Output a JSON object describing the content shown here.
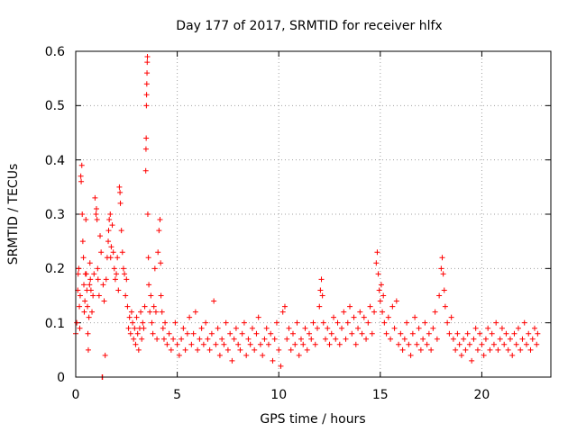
{
  "chart_data": {
    "type": "scatter",
    "title": "Day 177 of 2017, SRMTID for receiver hlfx",
    "xlabel": "GPS time / hours",
    "ylabel": "SRMTID / TECUs",
    "xlim": [
      0,
      23.4
    ],
    "ylim": [
      0,
      0.6
    ],
    "grid": true,
    "marker": "plus",
    "color": "#ff0000",
    "x_ticks": [
      0,
      5,
      10,
      15,
      20
    ],
    "x_tick_labels": [
      "0",
      "5",
      "10",
      "15",
      "20"
    ],
    "y_ticks": [
      0,
      0.1,
      0.2,
      0.3,
      0.4,
      0.5,
      0.6
    ],
    "y_tick_labels": [
      "0",
      "0.1",
      "0.2",
      "0.3",
      "0.4",
      "0.5",
      "0.6"
    ],
    "series": [
      {
        "name": "SRMTID",
        "points": [
          [
            0.0,
            0.08
          ],
          [
            0.05,
            0.1
          ],
          [
            0.1,
            0.16
          ],
          [
            0.12,
            0.19
          ],
          [
            0.15,
            0.2
          ],
          [
            0.18,
            0.13
          ],
          [
            0.2,
            0.09
          ],
          [
            0.22,
            0.15
          ],
          [
            0.25,
            0.37
          ],
          [
            0.27,
            0.36
          ],
          [
            0.3,
            0.39
          ],
          [
            0.32,
            0.3
          ],
          [
            0.35,
            0.25
          ],
          [
            0.38,
            0.22
          ],
          [
            0.4,
            0.17
          ],
          [
            0.42,
            0.12
          ],
          [
            0.45,
            0.14
          ],
          [
            0.48,
            0.19
          ],
          [
            0.5,
            0.29
          ],
          [
            0.52,
            0.19
          ],
          [
            0.55,
            0.16
          ],
          [
            0.58,
            0.13
          ],
          [
            0.6,
            0.08
          ],
          [
            0.62,
            0.05
          ],
          [
            0.65,
            0.11
          ],
          [
            0.68,
            0.17
          ],
          [
            0.7,
            0.21
          ],
          [
            0.72,
            0.18
          ],
          [
            0.75,
            0.16
          ],
          [
            0.8,
            0.12
          ],
          [
            0.85,
            0.15
          ],
          [
            0.9,
            0.19
          ],
          [
            0.95,
            0.33
          ],
          [
            1.0,
            0.3
          ],
          [
            1.02,
            0.31
          ],
          [
            1.05,
            0.29
          ],
          [
            1.08,
            0.2
          ],
          [
            1.1,
            0.18
          ],
          [
            1.15,
            0.15
          ],
          [
            1.2,
            0.26
          ],
          [
            1.25,
            0.23
          ],
          [
            1.3,
            0.0
          ],
          [
            1.32,
            0.0
          ],
          [
            1.35,
            0.17
          ],
          [
            1.4,
            0.14
          ],
          [
            1.45,
            0.04
          ],
          [
            1.5,
            0.18
          ],
          [
            1.55,
            0.22
          ],
          [
            1.6,
            0.25
          ],
          [
            1.62,
            0.27
          ],
          [
            1.65,
            0.29
          ],
          [
            1.7,
            0.3
          ],
          [
            1.72,
            0.22
          ],
          [
            1.75,
            0.24
          ],
          [
            1.8,
            0.28
          ],
          [
            1.85,
            0.23
          ],
          [
            1.9,
            0.2
          ],
          [
            1.95,
            0.18
          ],
          [
            2.0,
            0.19
          ],
          [
            2.05,
            0.22
          ],
          [
            2.1,
            0.16
          ],
          [
            2.15,
            0.35
          ],
          [
            2.18,
            0.34
          ],
          [
            2.2,
            0.32
          ],
          [
            2.25,
            0.27
          ],
          [
            2.3,
            0.23
          ],
          [
            2.35,
            0.2
          ],
          [
            2.4,
            0.19
          ],
          [
            2.45,
            0.15
          ],
          [
            2.5,
            0.18
          ],
          [
            2.55,
            0.13
          ],
          [
            2.6,
            0.09
          ],
          [
            2.65,
            0.11
          ],
          [
            2.7,
            0.08
          ],
          [
            2.75,
            0.12
          ],
          [
            2.8,
            0.1
          ],
          [
            2.85,
            0.07
          ],
          [
            2.9,
            0.09
          ],
          [
            2.95,
            0.06
          ],
          [
            3.0,
            0.11
          ],
          [
            3.05,
            0.08
          ],
          [
            3.1,
            0.05
          ],
          [
            3.15,
            0.09
          ],
          [
            3.2,
            0.12
          ],
          [
            3.25,
            0.07
          ],
          [
            3.3,
            0.1
          ],
          [
            3.35,
            0.09
          ],
          [
            3.4,
            0.13
          ],
          [
            3.45,
            0.38
          ],
          [
            3.46,
            0.42
          ],
          [
            3.47,
            0.44
          ],
          [
            3.48,
            0.5
          ],
          [
            3.49,
            0.52
          ],
          [
            3.5,
            0.54
          ],
          [
            3.51,
            0.56
          ],
          [
            3.52,
            0.58
          ],
          [
            3.53,
            0.59
          ],
          [
            3.55,
            0.3
          ],
          [
            3.58,
            0.22
          ],
          [
            3.6,
            0.17
          ],
          [
            3.65,
            0.12
          ],
          [
            3.7,
            0.15
          ],
          [
            3.75,
            0.1
          ],
          [
            3.8,
            0.08
          ],
          [
            3.85,
            0.13
          ],
          [
            3.9,
            0.2
          ],
          [
            3.95,
            0.12
          ],
          [
            4.0,
            0.07
          ],
          [
            4.05,
            0.23
          ],
          [
            4.1,
            0.27
          ],
          [
            4.15,
            0.29
          ],
          [
            4.18,
            0.21
          ],
          [
            4.2,
            0.15
          ],
          [
            4.25,
            0.12
          ],
          [
            4.3,
            0.09
          ],
          [
            4.35,
            0.07
          ],
          [
            4.4,
            0.1
          ],
          [
            4.5,
            0.06
          ],
          [
            4.6,
            0.08
          ],
          [
            4.7,
            0.05
          ],
          [
            4.8,
            0.07
          ],
          [
            4.9,
            0.1
          ],
          [
            5.0,
            0.06
          ],
          [
            5.1,
            0.04
          ],
          [
            5.2,
            0.07
          ],
          [
            5.3,
            0.09
          ],
          [
            5.4,
            0.05
          ],
          [
            5.5,
            0.08
          ],
          [
            5.6,
            0.11
          ],
          [
            5.7,
            0.06
          ],
          [
            5.8,
            0.08
          ],
          [
            5.9,
            0.12
          ],
          [
            6.0,
            0.05
          ],
          [
            6.1,
            0.07
          ],
          [
            6.2,
            0.09
          ],
          [
            6.3,
            0.06
          ],
          [
            6.4,
            0.1
          ],
          [
            6.5,
            0.07
          ],
          [
            6.6,
            0.05
          ],
          [
            6.7,
            0.08
          ],
          [
            6.8,
            0.14
          ],
          [
            6.9,
            0.06
          ],
          [
            7.0,
            0.09
          ],
          [
            7.1,
            0.04
          ],
          [
            7.2,
            0.07
          ],
          [
            7.3,
            0.06
          ],
          [
            7.4,
            0.1
          ],
          [
            7.5,
            0.05
          ],
          [
            7.6,
            0.08
          ],
          [
            7.7,
            0.03
          ],
          [
            7.8,
            0.07
          ],
          [
            7.9,
            0.09
          ],
          [
            8.0,
            0.06
          ],
          [
            8.1,
            0.05
          ],
          [
            8.2,
            0.08
          ],
          [
            8.3,
            0.1
          ],
          [
            8.4,
            0.04
          ],
          [
            8.5,
            0.07
          ],
          [
            8.6,
            0.06
          ],
          [
            8.7,
            0.09
          ],
          [
            8.8,
            0.05
          ],
          [
            8.9,
            0.08
          ],
          [
            9.0,
            0.11
          ],
          [
            9.1,
            0.06
          ],
          [
            9.2,
            0.04
          ],
          [
            9.3,
            0.07
          ],
          [
            9.4,
            0.09
          ],
          [
            9.5,
            0.06
          ],
          [
            9.6,
            0.08
          ],
          [
            9.7,
            0.03
          ],
          [
            9.8,
            0.07
          ],
          [
            9.9,
            0.1
          ],
          [
            10.0,
            0.05
          ],
          [
            10.1,
            0.02
          ],
          [
            10.2,
            0.12
          ],
          [
            10.3,
            0.13
          ],
          [
            10.4,
            0.07
          ],
          [
            10.5,
            0.09
          ],
          [
            10.6,
            0.05
          ],
          [
            10.7,
            0.08
          ],
          [
            10.8,
            0.06
          ],
          [
            10.9,
            0.1
          ],
          [
            11.0,
            0.04
          ],
          [
            11.1,
            0.07
          ],
          [
            11.2,
            0.06
          ],
          [
            11.3,
            0.09
          ],
          [
            11.4,
            0.05
          ],
          [
            11.5,
            0.08
          ],
          [
            11.6,
            0.07
          ],
          [
            11.7,
            0.1
          ],
          [
            11.8,
            0.06
          ],
          [
            11.9,
            0.09
          ],
          [
            12.0,
            0.13
          ],
          [
            12.05,
            0.16
          ],
          [
            12.1,
            0.18
          ],
          [
            12.15,
            0.15
          ],
          [
            12.2,
            0.1
          ],
          [
            12.3,
            0.07
          ],
          [
            12.4,
            0.09
          ],
          [
            12.5,
            0.06
          ],
          [
            12.6,
            0.08
          ],
          [
            12.7,
            0.11
          ],
          [
            12.8,
            0.07
          ],
          [
            12.9,
            0.1
          ],
          [
            13.0,
            0.06
          ],
          [
            13.1,
            0.09
          ],
          [
            13.2,
            0.12
          ],
          [
            13.3,
            0.07
          ],
          [
            13.4,
            0.1
          ],
          [
            13.5,
            0.13
          ],
          [
            13.6,
            0.08
          ],
          [
            13.7,
            0.11
          ],
          [
            13.8,
            0.06
          ],
          [
            13.9,
            0.09
          ],
          [
            14.0,
            0.12
          ],
          [
            14.1,
            0.08
          ],
          [
            14.2,
            0.11
          ],
          [
            14.3,
            0.07
          ],
          [
            14.4,
            0.1
          ],
          [
            14.5,
            0.13
          ],
          [
            14.6,
            0.08
          ],
          [
            14.7,
            0.12
          ],
          [
            14.8,
            0.21
          ],
          [
            14.85,
            0.23
          ],
          [
            14.9,
            0.19
          ],
          [
            14.95,
            0.16
          ],
          [
            15.0,
            0.14
          ],
          [
            15.05,
            0.17
          ],
          [
            15.1,
            0.12
          ],
          [
            15.15,
            0.15
          ],
          [
            15.2,
            0.1
          ],
          [
            15.3,
            0.08
          ],
          [
            15.4,
            0.11
          ],
          [
            15.5,
            0.07
          ],
          [
            15.6,
            0.13
          ],
          [
            15.7,
            0.09
          ],
          [
            15.8,
            0.14
          ],
          [
            15.9,
            0.06
          ],
          [
            16.0,
            0.08
          ],
          [
            16.1,
            0.05
          ],
          [
            16.2,
            0.07
          ],
          [
            16.3,
            0.1
          ],
          [
            16.4,
            0.06
          ],
          [
            16.5,
            0.04
          ],
          [
            16.6,
            0.08
          ],
          [
            16.7,
            0.11
          ],
          [
            16.8,
            0.06
          ],
          [
            16.9,
            0.09
          ],
          [
            17.0,
            0.05
          ],
          [
            17.1,
            0.07
          ],
          [
            17.2,
            0.1
          ],
          [
            17.3,
            0.06
          ],
          [
            17.4,
            0.08
          ],
          [
            17.5,
            0.05
          ],
          [
            17.6,
            0.09
          ],
          [
            17.7,
            0.12
          ],
          [
            17.8,
            0.07
          ],
          [
            17.9,
            0.15
          ],
          [
            18.0,
            0.2
          ],
          [
            18.05,
            0.22
          ],
          [
            18.1,
            0.19
          ],
          [
            18.15,
            0.16
          ],
          [
            18.2,
            0.13
          ],
          [
            18.3,
            0.1
          ],
          [
            18.4,
            0.08
          ],
          [
            18.5,
            0.11
          ],
          [
            18.6,
            0.07
          ],
          [
            18.7,
            0.05
          ],
          [
            18.8,
            0.08
          ],
          [
            18.9,
            0.06
          ],
          [
            19.0,
            0.04
          ],
          [
            19.1,
            0.07
          ],
          [
            19.2,
            0.05
          ],
          [
            19.3,
            0.08
          ],
          [
            19.4,
            0.06
          ],
          [
            19.5,
            0.03
          ],
          [
            19.6,
            0.07
          ],
          [
            19.7,
            0.09
          ],
          [
            19.8,
            0.05
          ],
          [
            19.9,
            0.08
          ],
          [
            20.0,
            0.06
          ],
          [
            20.1,
            0.04
          ],
          [
            20.2,
            0.07
          ],
          [
            20.3,
            0.09
          ],
          [
            20.4,
            0.05
          ],
          [
            20.5,
            0.08
          ],
          [
            20.6,
            0.06
          ],
          [
            20.7,
            0.1
          ],
          [
            20.8,
            0.05
          ],
          [
            20.9,
            0.07
          ],
          [
            21.0,
            0.09
          ],
          [
            21.1,
            0.06
          ],
          [
            21.2,
            0.08
          ],
          [
            21.3,
            0.05
          ],
          [
            21.4,
            0.07
          ],
          [
            21.5,
            0.04
          ],
          [
            21.6,
            0.08
          ],
          [
            21.7,
            0.06
          ],
          [
            21.8,
            0.09
          ],
          [
            21.9,
            0.05
          ],
          [
            22.0,
            0.07
          ],
          [
            22.1,
            0.1
          ],
          [
            22.2,
            0.06
          ],
          [
            22.3,
            0.08
          ],
          [
            22.4,
            0.05
          ],
          [
            22.5,
            0.07
          ],
          [
            22.6,
            0.09
          ],
          [
            22.7,
            0.06
          ],
          [
            22.75,
            0.08
          ]
        ]
      }
    ]
  }
}
